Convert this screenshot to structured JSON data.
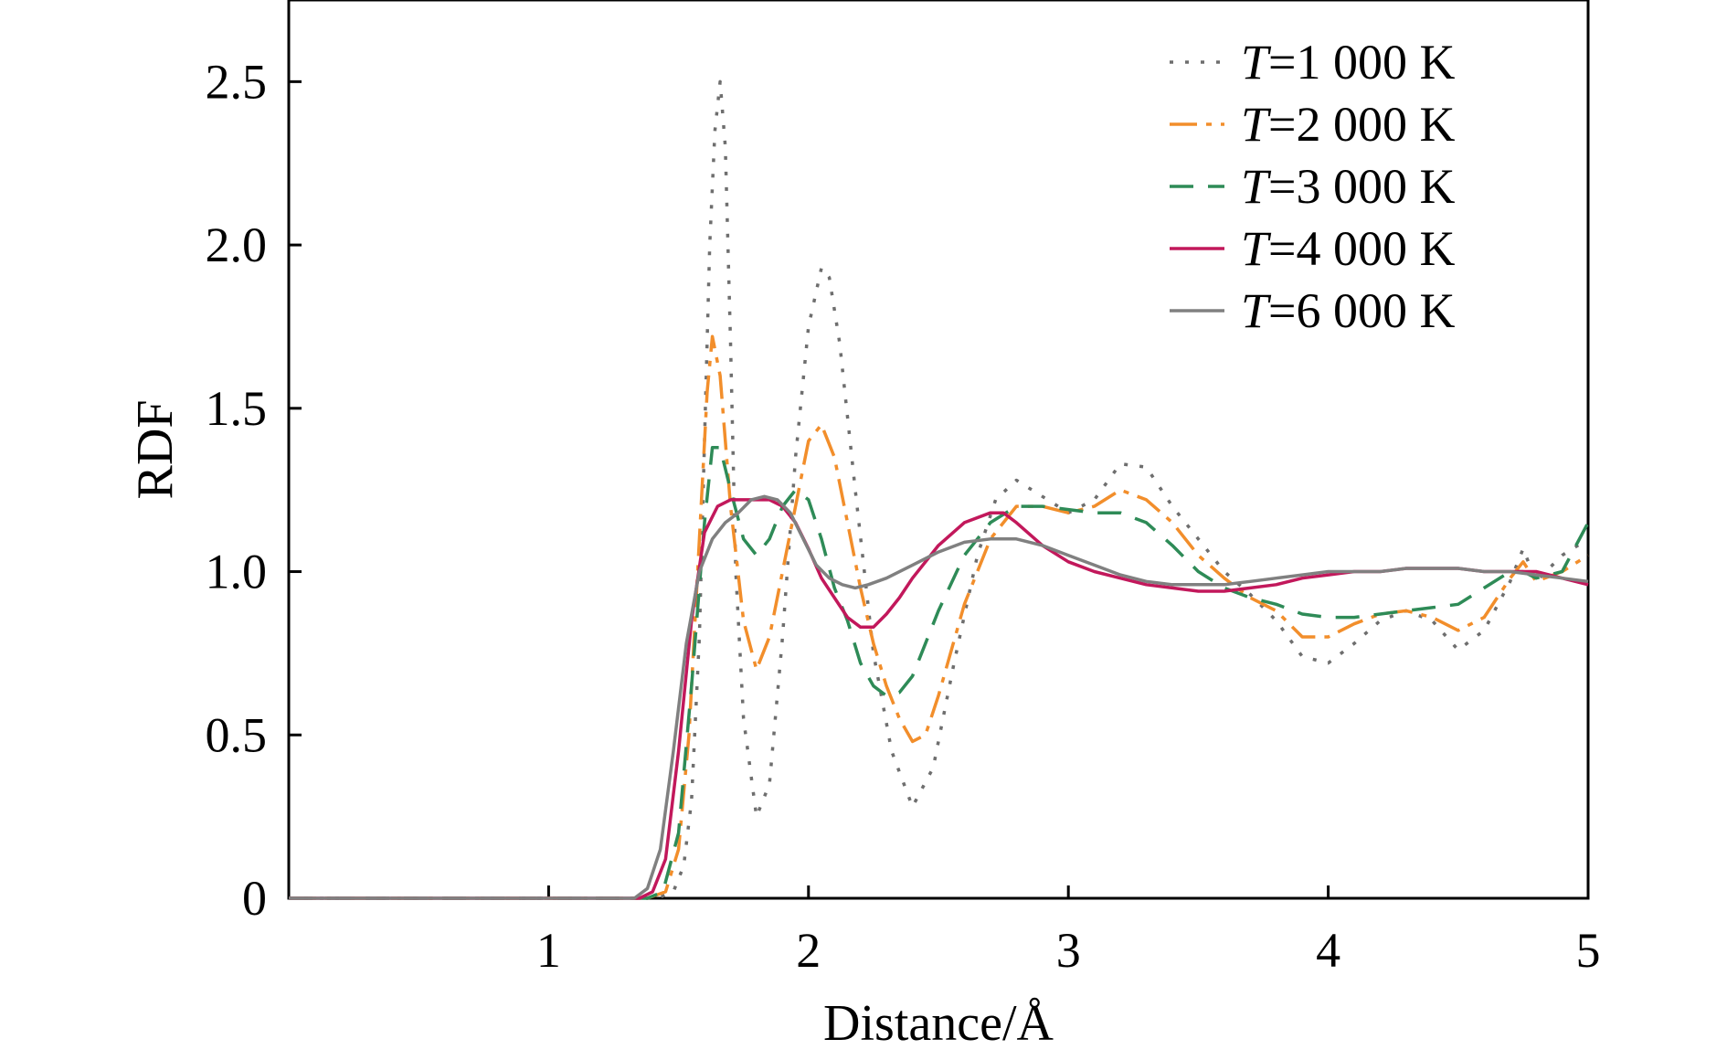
{
  "chart_data": {
    "type": "line",
    "xlabel": "Distance/Å",
    "ylabel": "RDF",
    "xlim": [
      0,
      5
    ],
    "ylim": [
      0,
      2.75
    ],
    "xticks": [
      1,
      2,
      3,
      4,
      5
    ],
    "xtick_labels": [
      "1",
      "2",
      "3",
      "4",
      "5"
    ],
    "yticks": [
      0,
      0.5,
      1.0,
      1.5,
      2.0,
      2.5
    ],
    "ytick_labels": [
      "0",
      "0.5",
      "1.0",
      "1.5",
      "2.0",
      "2.5"
    ],
    "grid": false,
    "legend_position": "top-right",
    "series": [
      {
        "legend_italic": "T",
        "legend_rest": "=1 000 K",
        "color": "#6e6e6e",
        "dash": "dotted",
        "x": [
          0,
          1.2,
          1.42,
          1.48,
          1.52,
          1.55,
          1.58,
          1.6,
          1.62,
          1.64,
          1.66,
          1.68,
          1.7,
          1.72,
          1.75,
          1.8,
          1.85,
          1.9,
          1.95,
          2.0,
          2.05,
          2.08,
          2.12,
          2.18,
          2.25,
          2.32,
          2.4,
          2.48,
          2.56,
          2.65,
          2.72,
          2.8,
          2.9,
          3.0,
          3.1,
          3.2,
          3.3,
          3.4,
          3.5,
          3.6,
          3.7,
          3.8,
          3.9,
          4.0,
          4.1,
          4.2,
          4.3,
          4.4,
          4.5,
          4.6,
          4.7,
          4.75,
          4.8,
          4.9,
          5.0
        ],
        "y": [
          0,
          0,
          0,
          0.02,
          0.1,
          0.3,
          0.8,
          1.4,
          2.0,
          2.35,
          2.5,
          2.3,
          1.7,
          1.0,
          0.55,
          0.25,
          0.35,
          0.8,
          1.35,
          1.75,
          1.93,
          1.9,
          1.7,
          1.25,
          0.75,
          0.45,
          0.28,
          0.4,
          0.72,
          1.05,
          1.22,
          1.28,
          1.23,
          1.18,
          1.22,
          1.33,
          1.32,
          1.2,
          1.1,
          1.0,
          0.93,
          0.85,
          0.74,
          0.72,
          0.78,
          0.85,
          0.88,
          0.85,
          0.76,
          0.82,
          0.97,
          1.07,
          0.97,
          1.05,
          1.1
        ]
      },
      {
        "legend_italic": "T",
        "legend_rest": "=2 000 K",
        "color": "#f28e2b",
        "dash": "long-dash-dot",
        "x": [
          0,
          1.2,
          1.38,
          1.45,
          1.5,
          1.54,
          1.58,
          1.61,
          1.63,
          1.66,
          1.7,
          1.75,
          1.8,
          1.85,
          1.9,
          1.95,
          2.0,
          2.05,
          2.1,
          2.15,
          2.2,
          2.25,
          2.3,
          2.35,
          2.4,
          2.45,
          2.5,
          2.6,
          2.7,
          2.8,
          2.9,
          3.0,
          3.1,
          3.2,
          3.3,
          3.4,
          3.5,
          3.6,
          3.7,
          3.8,
          3.9,
          4.0,
          4.1,
          4.2,
          4.3,
          4.4,
          4.5,
          4.6,
          4.7,
          4.75,
          4.8,
          4.9,
          5.0
        ],
        "y": [
          0,
          0,
          0,
          0.02,
          0.15,
          0.5,
          1.1,
          1.55,
          1.72,
          1.6,
          1.2,
          0.85,
          0.7,
          0.8,
          1.0,
          1.2,
          1.4,
          1.45,
          1.35,
          1.15,
          0.95,
          0.78,
          0.65,
          0.55,
          0.48,
          0.5,
          0.62,
          0.9,
          1.1,
          1.2,
          1.2,
          1.18,
          1.2,
          1.25,
          1.22,
          1.15,
          1.05,
          0.98,
          0.92,
          0.88,
          0.8,
          0.8,
          0.84,
          0.87,
          0.88,
          0.86,
          0.82,
          0.86,
          0.98,
          1.03,
          0.97,
          1.0,
          1.05
        ]
      },
      {
        "legend_italic": "T",
        "legend_rest": "=3 000 K",
        "color": "#2e8b57",
        "dash": "dashed",
        "x": [
          0,
          1.2,
          1.38,
          1.44,
          1.5,
          1.55,
          1.6,
          1.63,
          1.66,
          1.7,
          1.75,
          1.8,
          1.85,
          1.9,
          1.95,
          2.0,
          2.05,
          2.1,
          2.15,
          2.2,
          2.25,
          2.3,
          2.35,
          2.4,
          2.45,
          2.5,
          2.6,
          2.7,
          2.8,
          2.9,
          3.0,
          3.1,
          3.2,
          3.3,
          3.4,
          3.5,
          3.6,
          3.7,
          3.8,
          3.9,
          4.0,
          4.1,
          4.2,
          4.3,
          4.4,
          4.5,
          4.6,
          4.7,
          4.75,
          4.8,
          4.9,
          5.0
        ],
        "y": [
          0,
          0,
          0,
          0.02,
          0.2,
          0.65,
          1.15,
          1.38,
          1.38,
          1.25,
          1.1,
          1.05,
          1.1,
          1.2,
          1.25,
          1.22,
          1.1,
          0.95,
          0.85,
          0.72,
          0.65,
          0.62,
          0.63,
          0.68,
          0.78,
          0.88,
          1.05,
          1.15,
          1.2,
          1.2,
          1.19,
          1.18,
          1.18,
          1.15,
          1.08,
          1.0,
          0.95,
          0.92,
          0.9,
          0.87,
          0.86,
          0.86,
          0.87,
          0.88,
          0.89,
          0.9,
          0.95,
          1.0,
          1.0,
          0.98,
          1.0,
          1.15
        ]
      },
      {
        "legend_italic": "T",
        "legend_rest": "=4 000 K",
        "color": "#c2185b",
        "dash": "solid",
        "x": [
          0,
          1.2,
          1.35,
          1.4,
          1.45,
          1.5,
          1.55,
          1.6,
          1.65,
          1.7,
          1.75,
          1.8,
          1.85,
          1.9,
          1.95,
          2.0,
          2.05,
          2.1,
          2.15,
          2.2,
          2.25,
          2.3,
          2.35,
          2.4,
          2.5,
          2.6,
          2.7,
          2.75,
          2.8,
          2.9,
          3.0,
          3.1,
          3.2,
          3.3,
          3.4,
          3.5,
          3.6,
          3.7,
          3.8,
          3.9,
          4.0,
          4.1,
          4.2,
          4.3,
          4.4,
          4.5,
          4.6,
          4.7,
          4.8,
          4.9,
          5.0
        ],
        "y": [
          0,
          0,
          0,
          0.02,
          0.12,
          0.45,
          0.85,
          1.12,
          1.2,
          1.22,
          1.22,
          1.22,
          1.22,
          1.2,
          1.15,
          1.07,
          0.98,
          0.92,
          0.86,
          0.83,
          0.83,
          0.87,
          0.92,
          0.98,
          1.08,
          1.15,
          1.18,
          1.18,
          1.15,
          1.08,
          1.03,
          1.0,
          0.98,
          0.96,
          0.95,
          0.94,
          0.94,
          0.95,
          0.96,
          0.98,
          0.99,
          1.0,
          1.0,
          1.01,
          1.01,
          1.01,
          1.0,
          1.0,
          1.0,
          0.98,
          0.96
        ]
      },
      {
        "legend_italic": "T",
        "legend_rest": "=6 000 K",
        "color": "#808080",
        "dash": "solid",
        "x": [
          0,
          1.2,
          1.33,
          1.38,
          1.43,
          1.48,
          1.53,
          1.58,
          1.63,
          1.68,
          1.73,
          1.78,
          1.83,
          1.88,
          1.93,
          1.98,
          2.03,
          2.08,
          2.13,
          2.18,
          2.23,
          2.3,
          2.4,
          2.5,
          2.6,
          2.7,
          2.8,
          2.9,
          3.0,
          3.1,
          3.2,
          3.3,
          3.4,
          3.5,
          3.6,
          3.7,
          3.8,
          3.9,
          4.0,
          4.1,
          4.2,
          4.3,
          4.4,
          4.5,
          4.6,
          4.7,
          4.8,
          4.9,
          5.0
        ],
        "y": [
          0,
          0,
          0,
          0.03,
          0.15,
          0.45,
          0.78,
          1.0,
          1.1,
          1.15,
          1.18,
          1.22,
          1.23,
          1.22,
          1.18,
          1.1,
          1.02,
          0.98,
          0.96,
          0.95,
          0.96,
          0.98,
          1.02,
          1.06,
          1.09,
          1.1,
          1.1,
          1.08,
          1.05,
          1.02,
          0.99,
          0.97,
          0.96,
          0.96,
          0.96,
          0.97,
          0.98,
          0.99,
          1.0,
          1.0,
          1.0,
          1.01,
          1.01,
          1.01,
          1.0,
          1.0,
          0.99,
          0.98,
          0.97
        ]
      }
    ]
  }
}
